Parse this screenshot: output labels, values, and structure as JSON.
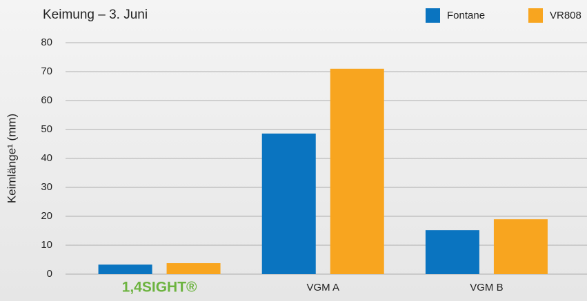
{
  "chart_data": {
    "type": "bar",
    "title": "Keimung – 3. Juni",
    "y_label": "Keimlänge¹ (mm)",
    "categories": [
      "1,4SIGHT®",
      "VGM A",
      "VGM B"
    ],
    "series": [
      {
        "name": "Fontane",
        "color": "#0a74c0",
        "values": [
          3.3,
          48.6,
          15.2
        ]
      },
      {
        "name": "VR808",
        "color": "#f8a51f",
        "values": [
          3.8,
          71,
          19
        ]
      }
    ],
    "ylim": [
      0,
      80
    ],
    "yticks": [
      0,
      10,
      20,
      30,
      40,
      50,
      60,
      70,
      80
    ],
    "grid": true,
    "legend": "top-right"
  }
}
